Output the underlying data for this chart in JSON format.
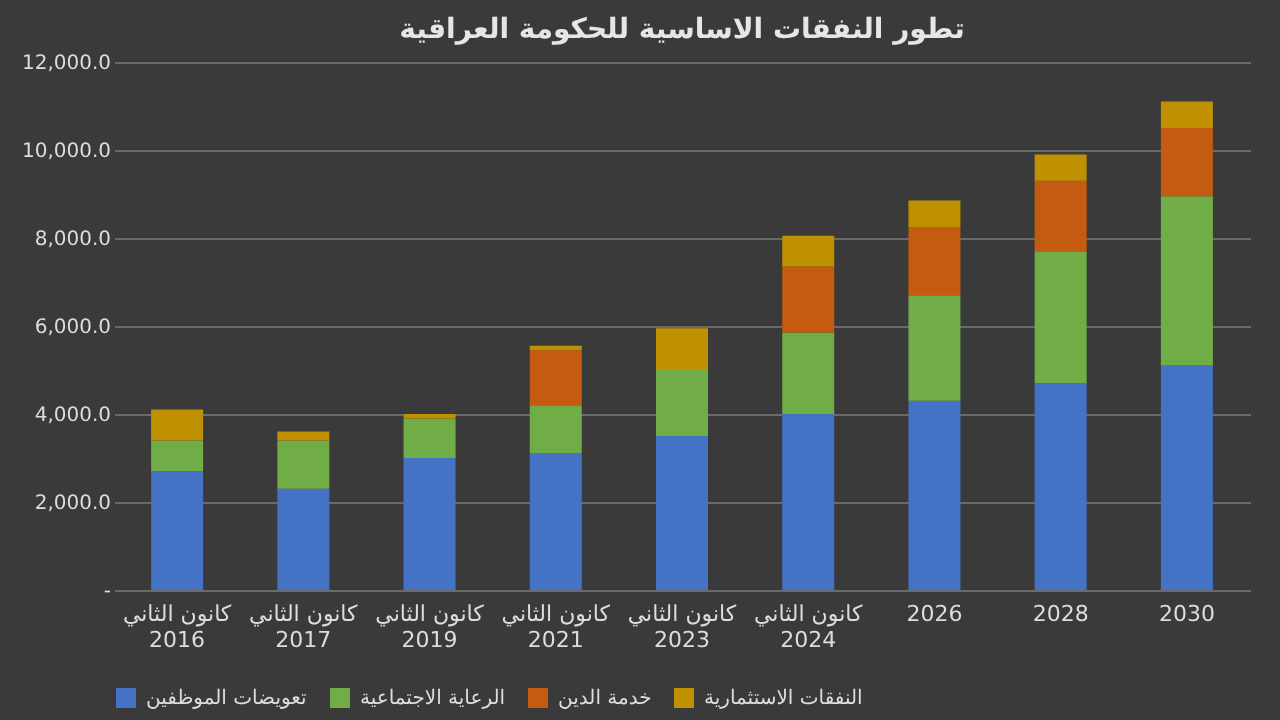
{
  "chart_data": {
    "type": "bar",
    "title": "تطور النفقات الاساسية للحكومة العراقية",
    "categories": [
      "كانون الثاني\n2016",
      "كانون الثاني\n2017",
      "كانون الثاني\n2019",
      "كانون الثاني\n2021",
      "كانون الثاني\n2023",
      "كانون الثاني\n2024",
      "2026",
      "2028",
      "2030"
    ],
    "stacked": true,
    "series": [
      {
        "name": "تعويضات الموظفين",
        "color": "#4472c4",
        "values": [
          2700,
          2300,
          3000,
          3100,
          3500,
          4000,
          4300,
          4700,
          5100
        ]
      },
      {
        "name": "الرعاية الاجتماعية",
        "color": "#70ad47",
        "values": [
          700,
          1100,
          900,
          1100,
          1500,
          1850,
          2400,
          3000,
          3850
        ]
      },
      {
        "name": "خدمة الدين",
        "color": "#c55a11",
        "values": [
          0,
          0,
          0,
          1250,
          0,
          1500,
          1550,
          1600,
          1550
        ]
      },
      {
        "name": "النفقات الاستثمارية",
        "color": "#bf9000",
        "values": [
          700,
          200,
          100,
          100,
          950,
          700,
          600,
          600,
          600
        ]
      }
    ],
    "ylim": [
      0,
      12000
    ],
    "yticks": [
      {
        "value": 0,
        "label": "-"
      },
      {
        "value": 2000,
        "label": "2,000.0"
      },
      {
        "value": 4000,
        "label": "4,000.0"
      },
      {
        "value": 6000,
        "label": "6,000.0"
      },
      {
        "value": 8000,
        "label": "8,000.0"
      },
      {
        "value": 10000,
        "label": "10,000.0"
      },
      {
        "value": 12000,
        "label": "12,000.0"
      }
    ],
    "grid": "y",
    "legend": "bottom"
  }
}
